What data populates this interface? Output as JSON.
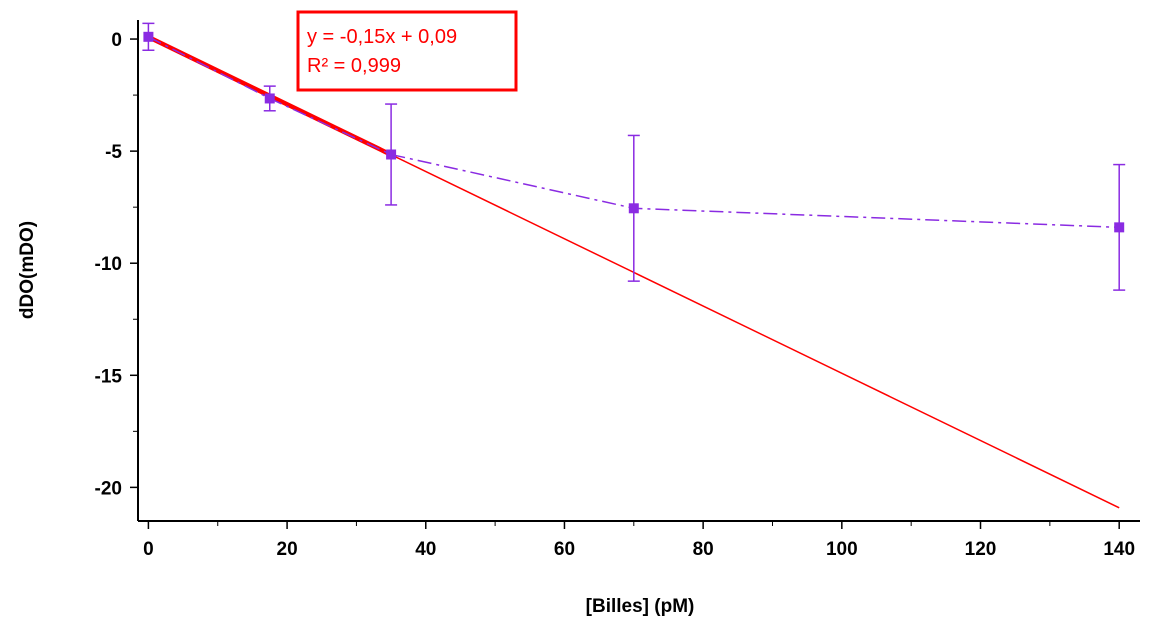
{
  "chart_data": {
    "type": "scatter",
    "xlabel": "[Billes] (pM)",
    "ylabel": "dDO(mDO)",
    "xlim": [
      -1.5,
      143
    ],
    "ylim": [
      -21.5,
      0.85
    ],
    "xticks": [
      0,
      20,
      40,
      60,
      80,
      100,
      120,
      140
    ],
    "yticks": [
      0,
      -5,
      -10,
      -15,
      -20
    ],
    "xtick_labels": [
      "0",
      "20",
      "40",
      "60",
      "80",
      "100",
      "120",
      "140"
    ],
    "ytick_labels": [
      "0",
      "-5",
      "-10",
      "-15",
      "-20"
    ],
    "grid": false,
    "series": [
      {
        "color": "#8a2be2",
        "line_style": "dash-dot",
        "marker": "square",
        "x": [
          0,
          17.5,
          35,
          70,
          140
        ],
        "y": [
          0.1,
          -2.65,
          -5.15,
          -7.55,
          -8.4
        ],
        "error": [
          0.6,
          0.55,
          2.25,
          3.25,
          2.8
        ]
      }
    ],
    "fit_line": {
      "color": "#ff0000",
      "slope": -0.15,
      "intercept": 0.09,
      "x_range": [
        0,
        140
      ],
      "thick_range": [
        0,
        35
      ]
    },
    "annotation": {
      "lines": [
        "y = -0,15x + 0,09",
        "R² = 0,999"
      ],
      "color": "#ff0000"
    }
  }
}
